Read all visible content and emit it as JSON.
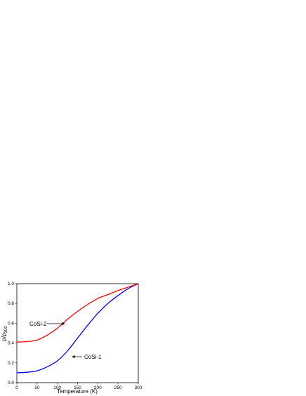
{
  "chart_data": {
    "type": "line",
    "xlabel": "Temperature (K)",
    "ylabel": "ρ/ρ",
    "ylabel_sub": "300",
    "x": [
      0,
      25,
      50,
      75,
      100,
      125,
      150,
      175,
      200,
      225,
      250,
      275,
      300
    ],
    "series": [
      {
        "name": "CoSi-1",
        "color": "#0000ff",
        "values": [
          0.1,
          0.105,
          0.12,
          0.16,
          0.22,
          0.32,
          0.45,
          0.58,
          0.7,
          0.8,
          0.88,
          0.95,
          1.0
        ]
      },
      {
        "name": "CoSi-2",
        "color": "#ff0000",
        "values": [
          0.41,
          0.415,
          0.43,
          0.48,
          0.55,
          0.64,
          0.72,
          0.79,
          0.85,
          0.89,
          0.93,
          0.965,
          1.0
        ]
      }
    ],
    "xlim": [
      0,
      300
    ],
    "xticks": [
      0,
      50,
      100,
      150,
      200,
      250,
      300
    ],
    "ylim": [
      0,
      1.0
    ],
    "yticks": [
      {
        "value": 0,
        "label": "0.0"
      },
      0.2,
      0.4,
      0.6,
      0.8,
      {
        "value": 1.0,
        "label": "1.0"
      }
    ]
  }
}
